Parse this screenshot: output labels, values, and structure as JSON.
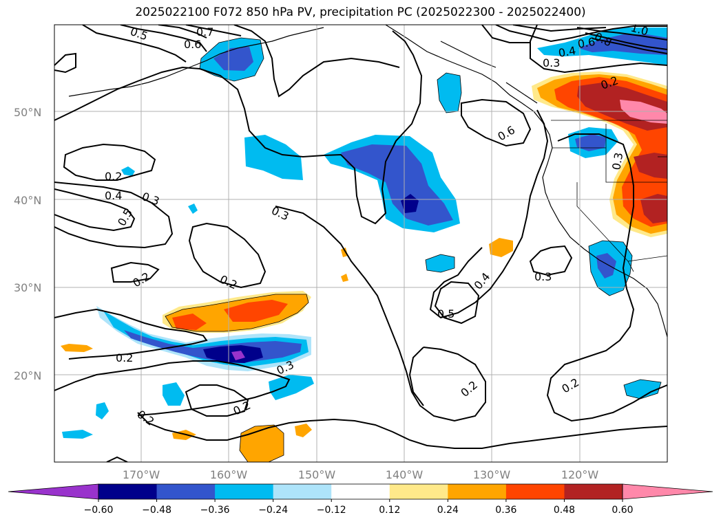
{
  "title": "2025022100 F072 850 hPa PV, precipitation PC (2025022300 - 2025022400)",
  "lat_labels": [
    "50°N",
    "40°N",
    "30°N",
    "20°N"
  ],
  "lon_labels": [
    "170°W",
    "160°W",
    "150°W",
    "140°W",
    "130°W",
    "120°W"
  ],
  "colorbar": {
    "tick_labels": [
      "−0.60",
      "−0.48",
      "−0.36",
      "−0.24",
      "−0.12",
      "0.12",
      "0.24",
      "0.36",
      "0.48",
      "0.60"
    ],
    "colors": [
      "#9933cc",
      "#00008b",
      "#3355cc",
      "#00bbf0",
      "#aee4fa",
      "#ffffff",
      "#ffe98a",
      "#ffa500",
      "#ff4500",
      "#b22222",
      "#ff88aa"
    ]
  },
  "contour_labels": [
    "0.5",
    "0.7",
    "0.6",
    "0.2",
    "0.4",
    "0.3",
    "0.5",
    "0.3",
    "0.2",
    "0.2",
    "0.2",
    "0.3",
    "0.2",
    "0.2",
    "0.5",
    "0.4",
    "0.3",
    "0.2",
    "0.2",
    "0.6",
    "0.8",
    "1.0",
    "0.6",
    "0.4",
    "0.3",
    "0.2",
    "0.3"
  ]
}
